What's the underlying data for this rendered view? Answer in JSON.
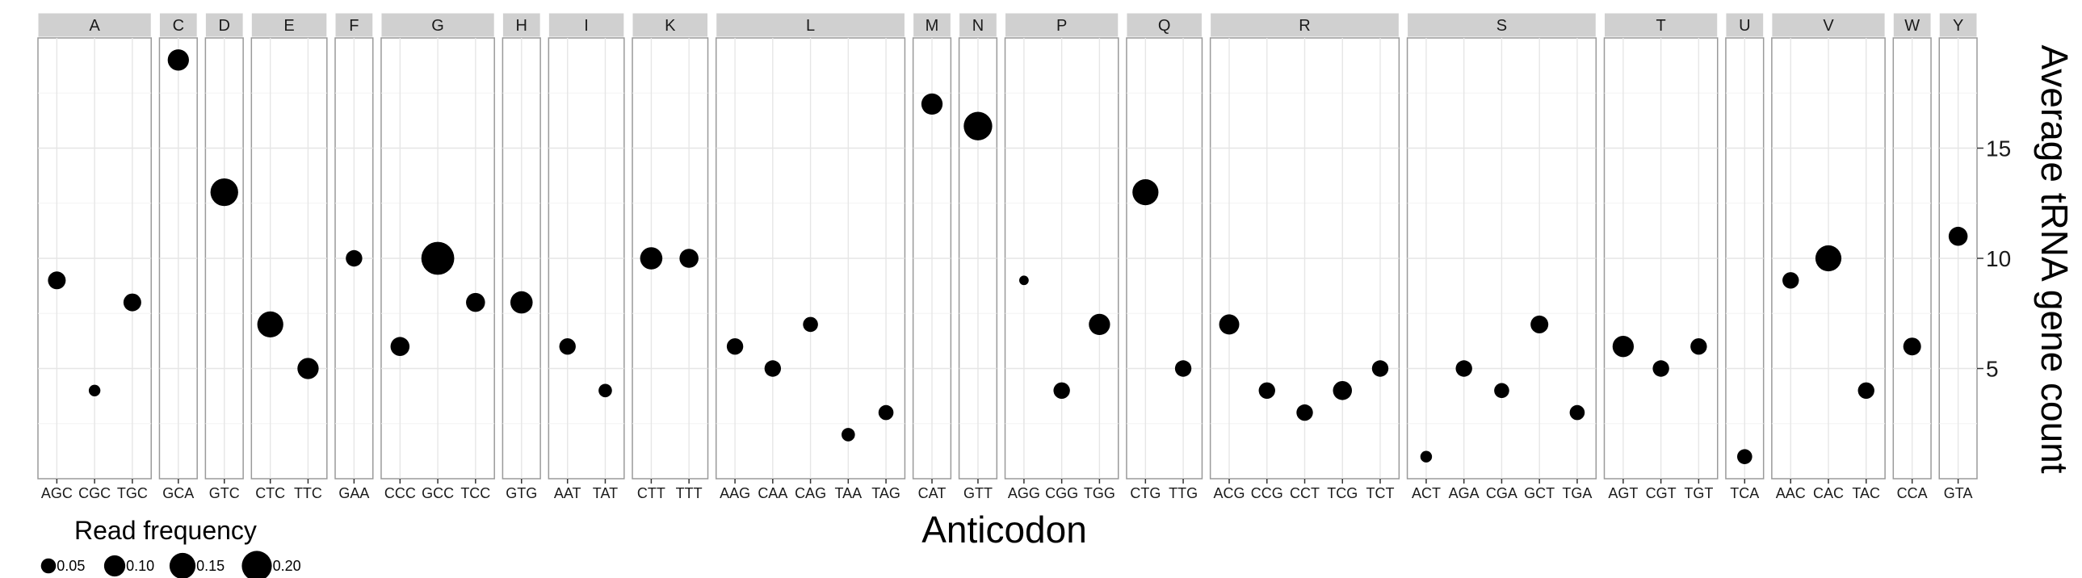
{
  "chart_data": {
    "type": "scatter",
    "xlabel": "Anticodon",
    "ylabel": "Average tRNA gene count",
    "y_axis_side": "right",
    "ylim": [
      0,
      20
    ],
    "yticks": [
      5,
      10,
      15
    ],
    "grid": true,
    "facets": [
      {
        "label": "A",
        "points": [
          {
            "x": "AGC",
            "y": 9,
            "freq": 0.07
          },
          {
            "x": "CGC",
            "y": 4,
            "freq": 0.03
          },
          {
            "x": "TGC",
            "y": 8,
            "freq": 0.07
          }
        ]
      },
      {
        "label": "C",
        "points": [
          {
            "x": "GCA",
            "y": 19,
            "freq": 0.1
          }
        ]
      },
      {
        "label": "D",
        "points": [
          {
            "x": "GTC",
            "y": 13,
            "freq": 0.17
          }
        ]
      },
      {
        "label": "E",
        "points": [
          {
            "x": "CTC",
            "y": 7,
            "freq": 0.15
          },
          {
            "x": "TTC",
            "y": 5,
            "freq": 0.1
          }
        ]
      },
      {
        "label": "F",
        "points": [
          {
            "x": "GAA",
            "y": 10,
            "freq": 0.06
          }
        ]
      },
      {
        "label": "G",
        "points": [
          {
            "x": "CCC",
            "y": 6,
            "freq": 0.08
          },
          {
            "x": "GCC",
            "y": 10,
            "freq": 0.24
          },
          {
            "x": "TCC",
            "y": 8,
            "freq": 0.08
          }
        ]
      },
      {
        "label": "H",
        "points": [
          {
            "x": "GTG",
            "y": 8,
            "freq": 0.11
          }
        ]
      },
      {
        "label": "I",
        "points": [
          {
            "x": "AAT",
            "y": 6,
            "freq": 0.06
          },
          {
            "x": "TAT",
            "y": 4,
            "freq": 0.04
          }
        ]
      },
      {
        "label": "K",
        "points": [
          {
            "x": "CTT",
            "y": 10,
            "freq": 0.11
          },
          {
            "x": "TTT",
            "y": 10,
            "freq": 0.08
          }
        ]
      },
      {
        "label": "L",
        "points": [
          {
            "x": "AAG",
            "y": 6,
            "freq": 0.06
          },
          {
            "x": "CAA",
            "y": 5,
            "freq": 0.06
          },
          {
            "x": "CAG",
            "y": 7,
            "freq": 0.05
          },
          {
            "x": "TAA",
            "y": 2,
            "freq": 0.04
          },
          {
            "x": "TAG",
            "y": 3,
            "freq": 0.05
          }
        ]
      },
      {
        "label": "M",
        "points": [
          {
            "x": "CAT",
            "y": 17,
            "freq": 0.1
          }
        ]
      },
      {
        "label": "N",
        "points": [
          {
            "x": "GTT",
            "y": 16,
            "freq": 0.18
          }
        ]
      },
      {
        "label": "P",
        "points": [
          {
            "x": "AGG",
            "y": 9,
            "freq": 0.02
          },
          {
            "x": "CGG",
            "y": 4,
            "freq": 0.06
          },
          {
            "x": "TGG",
            "y": 7,
            "freq": 0.1
          }
        ]
      },
      {
        "label": "Q",
        "points": [
          {
            "x": "CTG",
            "y": 13,
            "freq": 0.15
          },
          {
            "x": "TTG",
            "y": 5,
            "freq": 0.06
          }
        ]
      },
      {
        "label": "R",
        "points": [
          {
            "x": "ACG",
            "y": 7,
            "freq": 0.09
          },
          {
            "x": "CCG",
            "y": 4,
            "freq": 0.06
          },
          {
            "x": "CCT",
            "y": 3,
            "freq": 0.06
          },
          {
            "x": "TCG",
            "y": 4,
            "freq": 0.08
          },
          {
            "x": "TCT",
            "y": 5,
            "freq": 0.06
          }
        ]
      },
      {
        "label": "S",
        "points": [
          {
            "x": "ACT",
            "y": 1,
            "freq": 0.03
          },
          {
            "x": "AGA",
            "y": 5,
            "freq": 0.06
          },
          {
            "x": "CGA",
            "y": 4,
            "freq": 0.05
          },
          {
            "x": "GCT",
            "y": 7,
            "freq": 0.07
          },
          {
            "x": "TGA",
            "y": 3,
            "freq": 0.05
          }
        ]
      },
      {
        "label": "T",
        "points": [
          {
            "x": "AGT",
            "y": 6,
            "freq": 0.1
          },
          {
            "x": "CGT",
            "y": 5,
            "freq": 0.06
          },
          {
            "x": "TGT",
            "y": 6,
            "freq": 0.06
          }
        ]
      },
      {
        "label": "U",
        "points": [
          {
            "x": "TCA",
            "y": 1,
            "freq": 0.05
          }
        ]
      },
      {
        "label": "V",
        "points": [
          {
            "x": "AAC",
            "y": 9,
            "freq": 0.06
          },
          {
            "x": "CAC",
            "y": 10,
            "freq": 0.15
          },
          {
            "x": "TAC",
            "y": 4,
            "freq": 0.06
          }
        ]
      },
      {
        "label": "W",
        "points": [
          {
            "x": "CCA",
            "y": 6,
            "freq": 0.07
          }
        ]
      },
      {
        "label": "Y",
        "points": [
          {
            "x": "GTA",
            "y": 11,
            "freq": 0.08
          }
        ]
      }
    ],
    "legend": {
      "title": "Read frequency",
      "placement": "bottom-left",
      "items": [
        {
          "value": 0.05,
          "label": "0.05"
        },
        {
          "value": 0.1,
          "label": "0.10"
        },
        {
          "value": 0.15,
          "label": "0.15"
        },
        {
          "value": 0.2,
          "label": "0.20"
        }
      ]
    }
  }
}
